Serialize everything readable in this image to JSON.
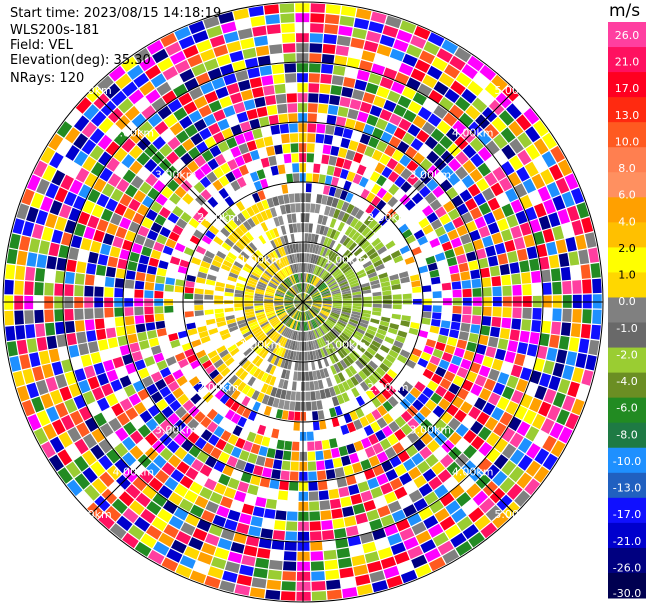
{
  "header": {
    "start_time": "Start time: 2023/08/15 14:18:19",
    "instrument": "WLS200s-181",
    "field": "Field: VEL",
    "elevation": "Elevation(deg): 35.30",
    "nrays": "NRays: 120"
  },
  "colorbar": {
    "unit": "m/s",
    "ticks": [
      "26.0",
      "21.0",
      "17.0",
      "13.0",
      "10.0",
      "8.0",
      "6.0",
      "4.0",
      "2.0",
      "1.0",
      "0.0",
      "-1.0",
      "-2.0",
      "-4.0",
      "-6.0",
      "-8.0",
      "-10.0",
      "-13.0",
      "-17.0",
      "-21.0",
      "-26.0",
      "-30.0"
    ],
    "bands": [
      "#ff3fa0",
      "#ff1060",
      "#ff0020",
      "#ff2a10",
      "#ff5a20",
      "#ff7f50",
      "#ff9060",
      "#ffa000",
      "#ffc000",
      "#ffff00",
      "#ffd700",
      "#808080",
      "#696969",
      "#9acd32",
      "#6b8e23",
      "#228b22",
      "#1e7a44",
      "#1e90ff",
      "#2060c0",
      "#1010ff",
      "#0000cd",
      "#000080",
      "#000050"
    ]
  },
  "chart_data": {
    "type": "ppi",
    "field": "VEL",
    "nrays": 120,
    "range_rings_km": [
      "1.00km",
      "2.00km",
      "3.00km",
      "4.00km",
      "5.00km"
    ],
    "unit": "m/s",
    "color_scale_min": -30.0,
    "color_scale_max": 26.0
  }
}
